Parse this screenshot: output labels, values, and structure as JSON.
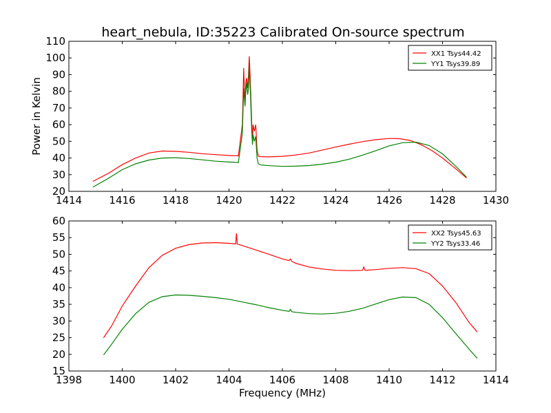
{
  "title": "heart_nebula, ID:35223 Calibrated On-source spectrum",
  "ylabel": "Power in Kelvin",
  "xlabel": "Frequency (MHz)",
  "chart_data": [
    {
      "type": "line",
      "xlim": [
        1414,
        1430
      ],
      "ylim": [
        20,
        110
      ],
      "xticks": [
        1414,
        1416,
        1418,
        1420,
        1422,
        1424,
        1426,
        1428,
        1430
      ],
      "yticks": [
        20,
        30,
        40,
        50,
        60,
        70,
        80,
        90,
        100,
        110
      ],
      "legend": "top-right",
      "grid": false,
      "series": [
        {
          "name": "XX1 Tsys44.42",
          "color": "#ff0000",
          "x": [
            1414.9,
            1415.5,
            1416.0,
            1416.5,
            1417.0,
            1417.5,
            1418.0,
            1418.5,
            1419.0,
            1419.5,
            1420.0,
            1420.35,
            1420.5,
            1420.55,
            1420.6,
            1420.63,
            1420.66,
            1420.7,
            1420.73,
            1420.76,
            1420.8,
            1420.85,
            1420.88,
            1420.9,
            1420.95,
            1421.0,
            1421.05,
            1421.1,
            1421.2,
            1421.5,
            1422.0,
            1422.5,
            1423.0,
            1423.5,
            1424.0,
            1424.5,
            1425.0,
            1425.5,
            1426.0,
            1426.4,
            1426.8,
            1427.2,
            1427.6,
            1428.0,
            1428.5,
            1428.9
          ],
          "y": [
            26,
            31,
            36,
            40,
            43,
            44.2,
            44,
            43.4,
            42.6,
            42,
            41.5,
            41.3,
            60,
            94,
            72,
            85,
            88,
            82,
            90,
            101,
            86,
            62,
            50,
            60,
            56,
            60,
            45,
            41,
            40.8,
            40.7,
            41,
            41.8,
            43,
            44.8,
            46.6,
            48.3,
            49.8,
            51,
            51.7,
            51.6,
            50.5,
            48,
            44.5,
            40,
            33.5,
            28
          ]
        },
        {
          "name": "YY1 Tsys39.89",
          "color": "#008000",
          "x": [
            1414.9,
            1415.5,
            1416.0,
            1416.5,
            1417.0,
            1417.5,
            1418.0,
            1418.5,
            1419.0,
            1419.5,
            1420.0,
            1420.35,
            1420.5,
            1420.55,
            1420.6,
            1420.63,
            1420.66,
            1420.7,
            1420.73,
            1420.76,
            1420.8,
            1420.85,
            1420.88,
            1420.9,
            1420.95,
            1421.0,
            1421.05,
            1421.1,
            1421.2,
            1421.5,
            1422.0,
            1422.5,
            1423.0,
            1423.5,
            1424.0,
            1424.5,
            1425.0,
            1425.5,
            1426.0,
            1426.5,
            1427.0,
            1427.5,
            1428.0,
            1428.5,
            1428.9
          ],
          "y": [
            22.5,
            28,
            33,
            36.5,
            38.8,
            40,
            40.2,
            39.7,
            38.9,
            38.1,
            37.6,
            37.3,
            55,
            82,
            71,
            80,
            85,
            78,
            82,
            95,
            80,
            57,
            48,
            54,
            50,
            53,
            40,
            36.5,
            35.8,
            35.4,
            35,
            35.1,
            35.5,
            36.3,
            37.5,
            39.3,
            41.7,
            44.4,
            47.3,
            49.2,
            49.5,
            47.5,
            42.5,
            35,
            28.5
          ]
        }
      ]
    },
    {
      "type": "line",
      "xlim": [
        1398,
        1414
      ],
      "ylim": [
        15,
        60
      ],
      "xticks": [
        1398,
        1400,
        1402,
        1404,
        1406,
        1408,
        1410,
        1412,
        1414
      ],
      "yticks": [
        15,
        20,
        25,
        30,
        35,
        40,
        45,
        50,
        55,
        60
      ],
      "legend": "top-right",
      "grid": false,
      "series": [
        {
          "name": "XX2 Tsys45.63",
          "color": "#ff0000",
          "x": [
            1399.3,
            1399.6,
            1400.0,
            1400.5,
            1401.0,
            1401.5,
            1402.0,
            1402.5,
            1403.0,
            1403.5,
            1404.0,
            1404.25,
            1404.28,
            1404.31,
            1404.5,
            1405.0,
            1405.5,
            1406.0,
            1406.25,
            1406.3,
            1406.35,
            1406.5,
            1407.0,
            1407.5,
            1408.0,
            1408.5,
            1409.0,
            1409.05,
            1409.1,
            1409.5,
            1410.0,
            1410.5,
            1411.0,
            1411.5,
            1412.0,
            1412.5,
            1413.0,
            1413.3
          ],
          "y": [
            25,
            28.5,
            34.5,
            40.5,
            46,
            49.7,
            51.8,
            52.9,
            53.4,
            53.5,
            53.3,
            53.1,
            56.3,
            53.1,
            52.6,
            51.3,
            50,
            48.6,
            48.1,
            48.6,
            47.9,
            47.3,
            46.2,
            45.6,
            45.2,
            45.1,
            45.2,
            46.2,
            45.2,
            45.4,
            45.8,
            46,
            45.7,
            44.2,
            40.5,
            35.5,
            29.5,
            26.7
          ]
        },
        {
          "name": "YY2 Tsys33.46",
          "color": "#008000",
          "x": [
            1399.3,
            1399.6,
            1400.0,
            1400.5,
            1401.0,
            1401.5,
            1402.0,
            1402.5,
            1403.0,
            1403.5,
            1404.0,
            1404.5,
            1405.0,
            1405.5,
            1406.0,
            1406.25,
            1406.3,
            1406.35,
            1406.5,
            1407.0,
            1407.5,
            1408.0,
            1408.5,
            1409.0,
            1409.5,
            1410.0,
            1410.5,
            1411.0,
            1411.5,
            1412.0,
            1412.5,
            1413.0,
            1413.3
          ],
          "y": [
            19.8,
            23,
            27.5,
            32.2,
            35.6,
            37.3,
            37.8,
            37.7,
            37.4,
            37,
            36.5,
            35.7,
            34.9,
            34,
            33.2,
            32.9,
            33.5,
            32.8,
            32.6,
            32.2,
            32.1,
            32.3,
            32.9,
            33.8,
            35.1,
            36.4,
            37.2,
            37,
            35,
            31,
            26.2,
            21.5,
            18.8
          ]
        }
      ]
    }
  ]
}
